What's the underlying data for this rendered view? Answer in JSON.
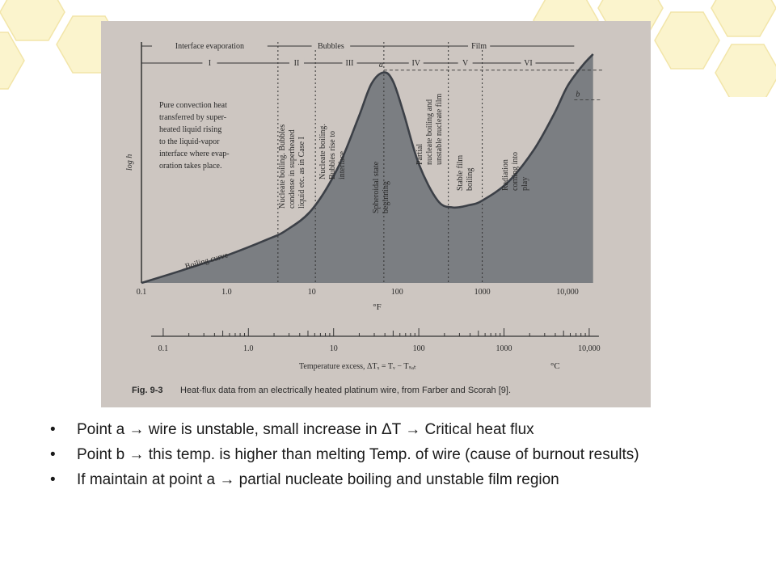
{
  "slide": {
    "bullets": [
      {
        "text": "Point a  →  wire is unstable, small increase in ΔT  →  Critical heat flux"
      },
      {
        "text": "Point b  →  this temp. is higher than melting Temp. of wire (cause of burnout results)"
      },
      {
        "text": "If maintain at point a  →  partial nucleate boiling and unstable film region"
      }
    ],
    "bullet_symbol": "•"
  },
  "chart_data": {
    "type": "area",
    "title": "",
    "caption_label": "Fig. 9-3",
    "caption_text": "Heat-flux data from an electrically heated platinum wire, from Farber and Scorah [9].",
    "ylabel": "log h",
    "x_scale": "log",
    "xlim": [
      0.1,
      25000
    ],
    "fahrenheit_axis": {
      "unit": "°F",
      "ticks": [
        0.1,
        1.0,
        10,
        100,
        1000,
        10000
      ],
      "tick_labels": [
        "0.1",
        "1.0",
        "10",
        "100",
        "1000",
        "10,000"
      ]
    },
    "celsius_axis": {
      "unit": "°C",
      "ticks": [
        0.1,
        1.0,
        10,
        100,
        1000,
        10000
      ],
      "tick_labels": [
        "0.1",
        "1.0",
        "10",
        "100",
        "1000",
        "10,000"
      ],
      "axis_label": "Temperature excess, ΔTₓ = Tᵥ − Tₛₐₜ"
    },
    "series": [
      {
        "name": "Boiling curve",
        "x": [
          0.1,
          0.3,
          1.0,
          3.0,
          5.0,
          10,
          20,
          35,
          50,
          70,
          90,
          120,
          180,
          300,
          450,
          700,
          1000,
          2000,
          4000,
          7000,
          10000,
          15000,
          20000
        ],
        "y": [
          0.0,
          0.055,
          0.12,
          0.19,
          0.23,
          0.32,
          0.5,
          0.72,
          0.87,
          0.92,
          0.88,
          0.74,
          0.52,
          0.36,
          0.33,
          0.34,
          0.36,
          0.44,
          0.58,
          0.74,
          0.86,
          0.95,
          1.0
        ]
      }
    ],
    "points": [
      {
        "label": "a",
        "x": 70,
        "y": 0.93
      },
      {
        "label": "b",
        "x": 12000,
        "y": 0.8
      }
    ],
    "regimes": [
      {
        "group": "Interface evaporation",
        "roman": "I",
        "x_from": 0.1,
        "x_to": 4.0
      },
      {
        "group": "Bubbles",
        "roman": "II",
        "x_from": 4.0,
        "x_to": 11
      },
      {
        "group": "Bubbles",
        "roman": "III",
        "x_from": 11,
        "x_to": 70
      },
      {
        "group": "Film",
        "roman": "IV",
        "x_from": 70,
        "x_to": 400
      },
      {
        "group": "Film",
        "roman": "V",
        "x_from": 400,
        "x_to": 1000
      },
      {
        "group": "Film",
        "roman": "VI",
        "x_from": 1000,
        "x_to": 12000
      }
    ],
    "group_labels": [
      "Interface evaporation",
      "Bubbles",
      "Film"
    ],
    "annotations": {
      "region1": [
        "Pure convection heat",
        "transferred by super-",
        "heated liquid rising",
        "to the liquid-vapor",
        "interface where evap-",
        "oration takes place."
      ],
      "region2": [
        "Nucleate boiling. Bubbles",
        "condense in superheated",
        "liquid etc. as in Case I"
      ],
      "region3": [
        "Nucleate boiling.",
        "Bubbles rise to",
        "interface"
      ],
      "spheroidal": [
        "Spheroidal state",
        "beginning"
      ],
      "region4": [
        "Partial",
        "nucleate boiling and",
        "unstable nucleate film"
      ],
      "region5": [
        "Stable film",
        "boiling"
      ],
      "region6": [
        "Radiation",
        "coming into",
        "play"
      ],
      "curve_label": "Boiling curve"
    },
    "colors": {
      "fill": "#7b7e82",
      "curve": "#3c4047",
      "paper": "#cdc6c1"
    }
  }
}
